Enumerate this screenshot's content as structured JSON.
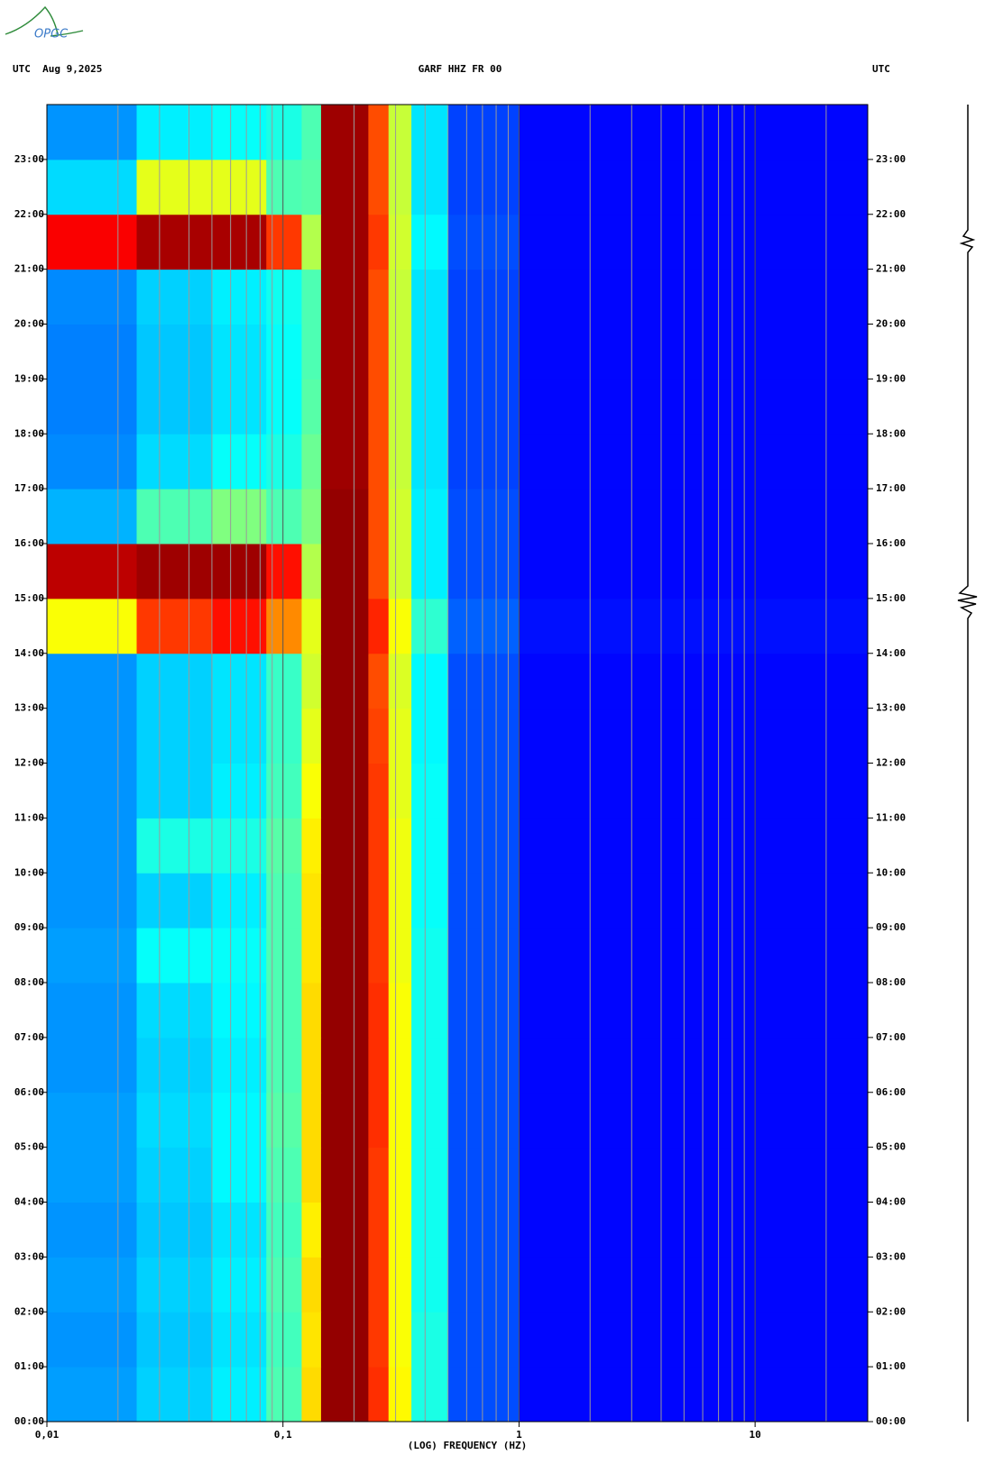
{
  "logo": "OPGC",
  "chart_data": {
    "type": "heatmap",
    "title_left": "UTC  Aug 9,2025",
    "title": "GARF HHZ FR 00",
    "title_right": "UTC",
    "xlabel": "(LOG) FREQUENCY (HZ)",
    "xscale": "log",
    "xlim": [
      0.01,
      30
    ],
    "xticks": [
      {
        "value": 0.01,
        "label": "0,01"
      },
      {
        "value": 0.1,
        "label": "0,1"
      },
      {
        "value": 1,
        "label": "1"
      },
      {
        "value": 10,
        "label": "10"
      }
    ],
    "xgrid": [
      0.02,
      0.03,
      0.04,
      0.05,
      0.06,
      0.07,
      0.08,
      0.09,
      0.2,
      0.3,
      0.4,
      0.5,
      0.6,
      0.7,
      0.8,
      0.9,
      2,
      3,
      4,
      5,
      6,
      7,
      8,
      9,
      20
    ],
    "ylim": [
      0,
      24
    ],
    "yticks": [
      {
        "value": 0,
        "label": "00:00"
      },
      {
        "value": 1,
        "label": "01:00"
      },
      {
        "value": 2,
        "label": "02:00"
      },
      {
        "value": 3,
        "label": "03:00"
      },
      {
        "value": 4,
        "label": "04:00"
      },
      {
        "value": 5,
        "label": "05:00"
      },
      {
        "value": 6,
        "label": "06:00"
      },
      {
        "value": 7,
        "label": "07:00"
      },
      {
        "value": 8,
        "label": "08:00"
      },
      {
        "value": 9,
        "label": "09:00"
      },
      {
        "value": 10,
        "label": "10:00"
      },
      {
        "value": 11,
        "label": "11:00"
      },
      {
        "value": 12,
        "label": "12:00"
      },
      {
        "value": 13,
        "label": "13:00"
      },
      {
        "value": 14,
        "label": "14:00"
      },
      {
        "value": 15,
        "label": "15:00"
      },
      {
        "value": 16,
        "label": "16:00"
      },
      {
        "value": 17,
        "label": "17:00"
      },
      {
        "value": 18,
        "label": "18:00"
      },
      {
        "value": 19,
        "label": "19:00"
      },
      {
        "value": 20,
        "label": "20:00"
      },
      {
        "value": 21,
        "label": "21:00"
      },
      {
        "value": 22,
        "label": "22:00"
      },
      {
        "value": 23,
        "label": "23:00"
      }
    ],
    "bins": [
      0.01,
      0.024,
      0.05,
      0.085,
      0.12,
      0.145,
      0.23,
      0.28,
      0.35,
      0.5,
      1,
      30
    ],
    "y_bins": [
      0,
      1,
      2,
      3,
      4,
      5,
      6,
      7,
      8,
      9,
      10,
      11,
      12,
      13,
      14,
      15,
      16,
      17,
      18,
      19,
      20,
      21,
      22,
      23,
      24
    ],
    "z": [
      [
        0.28,
        0.33,
        0.36,
        0.45,
        0.66,
        0.98,
        0.83,
        0.63,
        0.4,
        0.2,
        0.13
      ],
      [
        0.27,
        0.32,
        0.35,
        0.44,
        0.65,
        0.98,
        0.82,
        0.62,
        0.4,
        0.2,
        0.13
      ],
      [
        0.28,
        0.33,
        0.36,
        0.45,
        0.66,
        0.98,
        0.82,
        0.62,
        0.39,
        0.2,
        0.13
      ],
      [
        0.27,
        0.32,
        0.35,
        0.44,
        0.64,
        0.98,
        0.82,
        0.62,
        0.39,
        0.2,
        0.13
      ],
      [
        0.28,
        0.33,
        0.37,
        0.45,
        0.66,
        0.98,
        0.82,
        0.62,
        0.39,
        0.2,
        0.13
      ],
      [
        0.28,
        0.34,
        0.37,
        0.46,
        0.66,
        0.98,
        0.83,
        0.62,
        0.39,
        0.2,
        0.13
      ],
      [
        0.27,
        0.33,
        0.36,
        0.45,
        0.66,
        0.98,
        0.83,
        0.62,
        0.39,
        0.2,
        0.13
      ],
      [
        0.27,
        0.34,
        0.37,
        0.45,
        0.66,
        0.98,
        0.83,
        0.62,
        0.39,
        0.2,
        0.13
      ],
      [
        0.28,
        0.38,
        0.38,
        0.45,
        0.65,
        0.98,
        0.82,
        0.61,
        0.39,
        0.2,
        0.13
      ],
      [
        0.27,
        0.33,
        0.36,
        0.45,
        0.65,
        0.98,
        0.82,
        0.61,
        0.38,
        0.2,
        0.13
      ],
      [
        0.27,
        0.4,
        0.4,
        0.46,
        0.64,
        0.98,
        0.82,
        0.61,
        0.38,
        0.2,
        0.13
      ],
      [
        0.27,
        0.33,
        0.36,
        0.44,
        0.62,
        0.98,
        0.82,
        0.6,
        0.38,
        0.2,
        0.13
      ],
      [
        0.27,
        0.33,
        0.35,
        0.43,
        0.6,
        0.98,
        0.81,
        0.6,
        0.37,
        0.2,
        0.13
      ],
      [
        0.27,
        0.33,
        0.35,
        0.43,
        0.58,
        0.98,
        0.8,
        0.59,
        0.37,
        0.2,
        0.13
      ],
      [
        0.62,
        0.82,
        0.86,
        0.74,
        0.6,
        0.98,
        0.84,
        0.62,
        0.42,
        0.22,
        0.14
      ],
      [
        0.94,
        0.97,
        0.97,
        0.86,
        0.55,
        0.98,
        0.8,
        0.58,
        0.36,
        0.2,
        0.13
      ],
      [
        0.3,
        0.45,
        0.5,
        0.45,
        0.5,
        0.98,
        0.8,
        0.58,
        0.36,
        0.2,
        0.13
      ],
      [
        0.26,
        0.34,
        0.38,
        0.4,
        0.48,
        0.97,
        0.8,
        0.57,
        0.35,
        0.19,
        0.13
      ],
      [
        0.25,
        0.32,
        0.35,
        0.38,
        0.46,
        0.97,
        0.8,
        0.57,
        0.35,
        0.19,
        0.13
      ],
      [
        0.25,
        0.32,
        0.35,
        0.38,
        0.45,
        0.97,
        0.8,
        0.57,
        0.35,
        0.19,
        0.13
      ],
      [
        0.26,
        0.33,
        0.36,
        0.39,
        0.45,
        0.97,
        0.8,
        0.57,
        0.35,
        0.19,
        0.13
      ],
      [
        0.88,
        0.96,
        0.96,
        0.82,
        0.55,
        0.97,
        0.82,
        0.58,
        0.37,
        0.2,
        0.13
      ],
      [
        0.34,
        0.6,
        0.6,
        0.45,
        0.46,
        0.97,
        0.8,
        0.57,
        0.35,
        0.19,
        0.13
      ],
      [
        0.27,
        0.36,
        0.38,
        0.4,
        0.45,
        0.97,
        0.8,
        0.57,
        0.35,
        0.19,
        0.13
      ]
    ]
  }
}
